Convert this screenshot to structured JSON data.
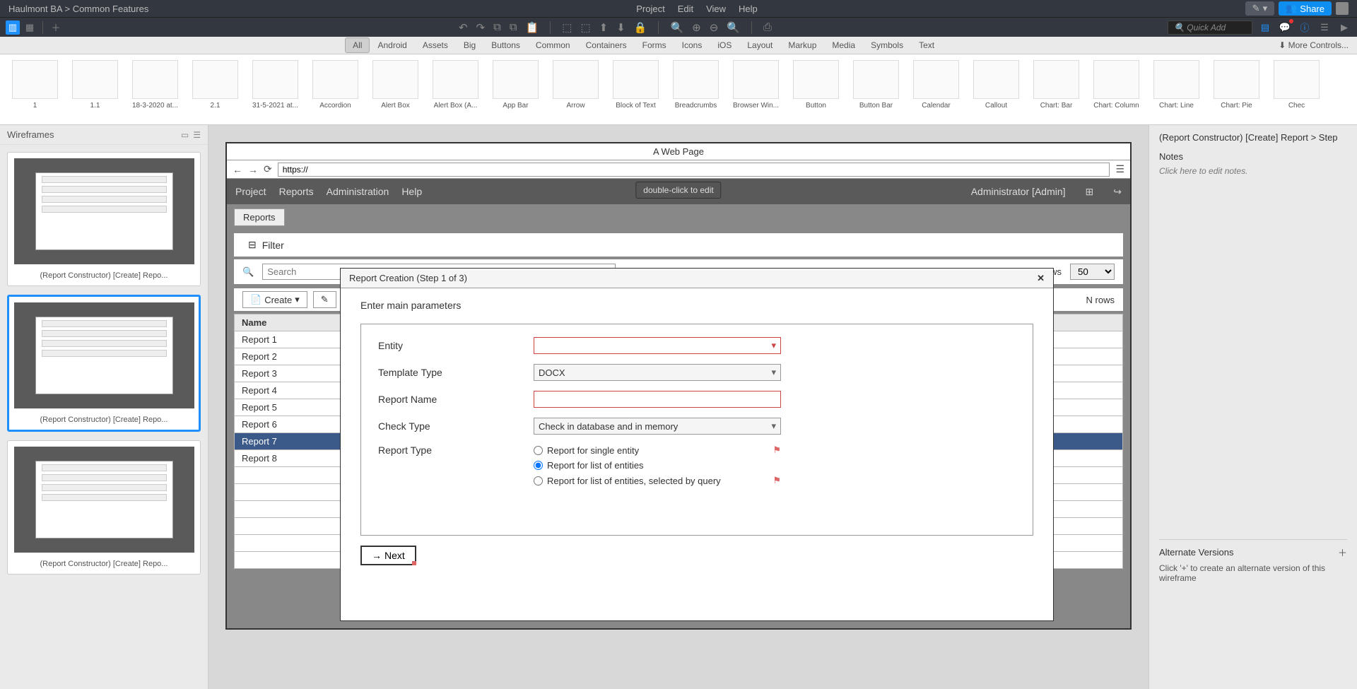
{
  "topbar": {
    "breadcrumb": "Haulmont BA  >  Common Features",
    "menus": [
      "Project",
      "Edit",
      "View",
      "Help"
    ],
    "edit_icon": "✎",
    "share_label": "Share"
  },
  "toolbar": {
    "quick_add_placeholder": "Quick Add"
  },
  "component_tabs": [
    "All",
    "Android",
    "Assets",
    "Big",
    "Buttons",
    "Common",
    "Containers",
    "Forms",
    "Icons",
    "iOS",
    "Layout",
    "Markup",
    "Media",
    "Symbols",
    "Text"
  ],
  "more_controls": "More Controls...",
  "components": [
    "1",
    "1.1",
    "18-3-2020 at...",
    "2.1",
    "31-5-2021 at...",
    "Accordion",
    "Alert Box",
    "Alert Box (A...",
    "App Bar",
    "Arrow",
    "Block of Text",
    "Breadcrumbs",
    "Browser Win...",
    "Button",
    "Button Bar",
    "Calendar",
    "Callout",
    "Chart: Bar",
    "Chart: Column",
    "Chart: Line",
    "Chart: Pie",
    "Chec"
  ],
  "left_panel": {
    "title": "Wireframes",
    "items": [
      "(Report Constructor) [Create] Repo...",
      "(Report Constructor) [Create] Repo...",
      "(Report Constructor) [Create] Repo..."
    ]
  },
  "browser": {
    "title": "A Web Page",
    "url": "https://"
  },
  "app": {
    "menus": [
      "Project",
      "Reports",
      "Administration",
      "Help"
    ],
    "tooltip": "double-click to edit",
    "user": "Administrator [Admin]",
    "tab": "Reports",
    "filter_label": "Filter",
    "search_placeholder": "Search",
    "rows_label": "rows",
    "rows_value": "50",
    "create_label": "Create",
    "nrows": "N rows",
    "columns": [
      "Name"
    ],
    "rows": [
      "Report 1",
      "Report 2",
      "Report 3",
      "Report 4",
      "Report 5",
      "Report 6",
      "Report 7",
      "Report 8"
    ],
    "selected_row": 6
  },
  "dialog": {
    "title": "Report Creation (Step 1 of 3)",
    "instruction": "Enter main parameters",
    "labels": {
      "entity": "Entity",
      "template": "Template Type",
      "report_name": "Report Name",
      "check_type": "Check Type",
      "report_type": "Report Type"
    },
    "template_value": "DOCX",
    "check_value": "Check in database and in memory",
    "radios": [
      "Report for single entity",
      "Report for list of entities",
      "Report for list of entities, selected by query"
    ],
    "radio_selected": 1,
    "next": "Next"
  },
  "right_panel": {
    "title": "(Report Constructor) [Create] Report > Step",
    "notes": "Notes",
    "notes_hint": "Click here to edit notes.",
    "alt_title": "Alternate Versions",
    "alt_hint": "Click '+' to create an alternate version of this wireframe"
  }
}
